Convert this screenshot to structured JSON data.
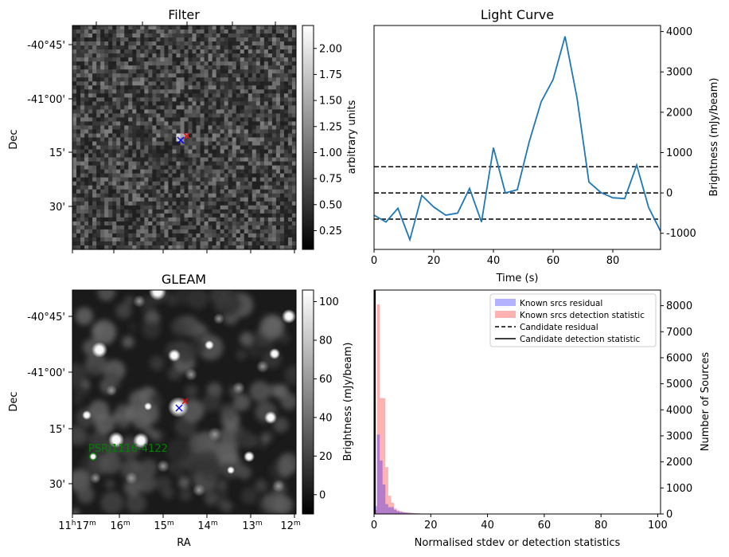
{
  "panels": {
    "filter": {
      "title": "Filter",
      "ylabel": "Dec",
      "colorbar_label": "arbitrary units",
      "colorbar_ticks": [
        "0.25",
        "0.50",
        "0.75",
        "1.00",
        "1.25",
        "1.50",
        "1.75",
        "2.00"
      ],
      "colorbar_tick_values": [
        0.25,
        0.5,
        0.75,
        1.0,
        1.25,
        1.5,
        1.75,
        2.0
      ],
      "colorbar_range": [
        0.07,
        2.22
      ]
    },
    "gleam": {
      "title": "GLEAM",
      "ylabel": "Dec",
      "xlabel": "RA",
      "colorbar_label": "Brightness (mJy/beam)",
      "colorbar_ticks": [
        "0",
        "20",
        "40",
        "60",
        "80",
        "100"
      ],
      "colorbar_tick_values": [
        0,
        20,
        40,
        60,
        80,
        100
      ],
      "colorbar_range": [
        -10,
        106
      ],
      "source_label": "PSRJ1116-4122",
      "source_label_color": "#008000"
    },
    "dec_ticks": [
      "-40°45'",
      "-41°00'",
      "15'",
      "30'"
    ],
    "ra_ticks": [
      {
        "h": "11",
        "hs": "h",
        "m": "17",
        "ms": "m"
      },
      {
        "m": "16",
        "ms": "m"
      },
      {
        "m": "15",
        "ms": "m"
      },
      {
        "m": "14",
        "ms": "m"
      },
      {
        "m": "13",
        "ms": "m"
      },
      {
        "m": "12",
        "ms": "m"
      }
    ],
    "markers": {
      "candidate_color": "#0000ff",
      "catalogue_color": "#ff0000"
    }
  },
  "chart_data": [
    {
      "type": "line",
      "title": "Light Curve",
      "xlabel": "Time (s)",
      "ylabel": "Brightness (mJy/beam)",
      "xlim": [
        0,
        96
      ],
      "ylim": [
        -1400,
        4150
      ],
      "xticks": [
        0,
        20,
        40,
        60,
        80
      ],
      "yticks": [
        -1000,
        0,
        1000,
        2000,
        3000,
        4000
      ],
      "line_color": "#1f77b4",
      "series": [
        {
          "x": [
            0,
            4,
            8,
            12,
            16,
            20,
            24,
            28,
            32,
            36,
            40,
            44,
            48,
            52,
            56,
            60,
            64,
            68,
            72,
            76,
            80,
            84,
            88,
            92,
            96
          ],
          "values": [
            -550,
            -720,
            -380,
            -1160,
            -60,
            -350,
            -550,
            -500,
            110,
            -720,
            1120,
            0,
            80,
            1270,
            2260,
            2810,
            3880,
            2360,
            270,
            10,
            -120,
            -140,
            690,
            -360,
            -950
          ]
        }
      ],
      "hlines": [
        650,
        0,
        -650
      ],
      "hline_style": "dashed"
    },
    {
      "type": "histogram",
      "xlabel": "Normalised stdev or detection statistics",
      "ylabel": "Number of Sources",
      "xlim": [
        0,
        101
      ],
      "ylim": [
        0,
        8600
      ],
      "xticks": [
        0,
        20,
        40,
        60,
        80,
        100
      ],
      "yticks": [
        0,
        1000,
        2000,
        3000,
        4000,
        5000,
        6000,
        7000,
        8000
      ],
      "bin_width": 1,
      "legend_position": "upper right",
      "series": [
        {
          "name": "Known srcs residual",
          "color": "#0000ff",
          "alpha": 0.3,
          "bin_start": [
            0,
            1,
            2,
            3,
            4,
            5,
            6,
            7,
            8,
            9,
            10,
            11,
            12,
            13,
            14,
            15,
            16,
            17,
            18,
            19,
            20
          ],
          "values": [
            300,
            3050,
            2050,
            1130,
            380,
            260,
            260,
            160,
            100,
            80,
            60,
            50,
            40,
            30,
            25,
            20,
            15,
            10,
            10,
            8,
            5
          ]
        },
        {
          "name": "Known srcs detection statistic",
          "color": "#ff0000",
          "alpha": 0.3,
          "bin_start": [
            0,
            1,
            2,
            3,
            4,
            5,
            6,
            7,
            8,
            9,
            10,
            11,
            12,
            13,
            14,
            15,
            16,
            17,
            18,
            19,
            20,
            25,
            30,
            40,
            50,
            94
          ],
          "values": [
            150,
            8050,
            4450,
            4450,
            1800,
            700,
            430,
            210,
            140,
            100,
            80,
            60,
            50,
            40,
            30,
            25,
            20,
            20,
            15,
            10,
            10,
            5,
            5,
            5,
            5,
            5
          ]
        },
        {
          "name": "Candidate residual",
          "color": "#000000",
          "style": "dashed",
          "x": 0.15
        },
        {
          "name": "Candidate detection statistic",
          "color": "#000000",
          "style": "solid",
          "x": 0.3
        }
      ]
    }
  ]
}
